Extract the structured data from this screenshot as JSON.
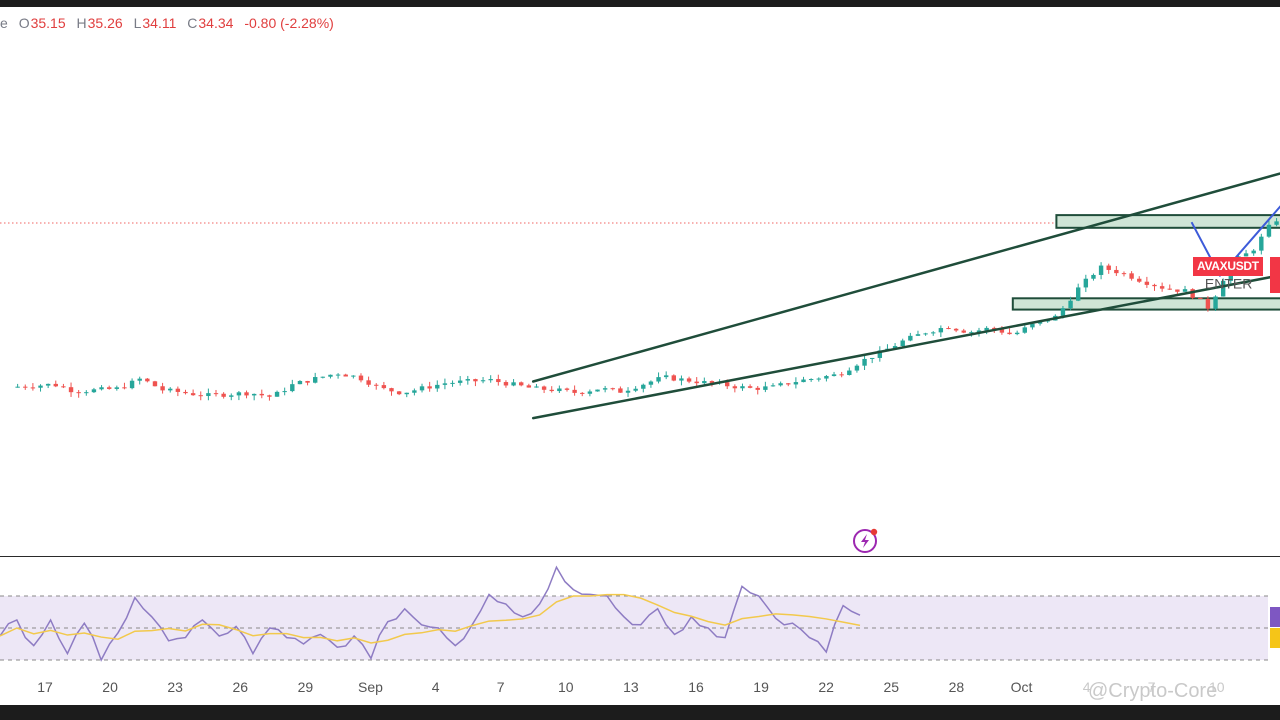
{
  "header": {
    "ohlc_prefix": "e",
    "open_label": "O",
    "open": "35.15",
    "high_label": "H",
    "high": "35.26",
    "low_label": "L",
    "low": "34.11",
    "close_label": "C",
    "close": "34.34",
    "change": "-0.80 (-2.28%)"
  },
  "price_tag": "AVAXUSDT",
  "annotation": "ENTER",
  "watermark": "@Crypto-Core",
  "colors": {
    "bull": "#26a69a",
    "bear": "#ef5350",
    "trendline": "#1f4d3a",
    "zone_fill": "#cfe5d6",
    "zone_stroke": "#1f4d3a",
    "arrow": "#3d5bd9",
    "rsi_line": "#8e7cc3",
    "rsi_ma": "#f2c94c",
    "rsi_band": "#ede7f6"
  },
  "chart_data": {
    "type": "candlestick",
    "symbol": "AVAXUSDT",
    "last_close": 34.34,
    "x_tick_labels": [
      "17",
      "20",
      "23",
      "26",
      "29",
      "Sep",
      "4",
      "7",
      "10",
      "13",
      "16",
      "19",
      "22",
      "25",
      "28",
      "Oct",
      "4",
      "7",
      "10"
    ],
    "price_path": [
      [
        0,
        22.7
      ],
      [
        2,
        22.9
      ],
      [
        3,
        22.4
      ],
      [
        5,
        22.6
      ],
      [
        6,
        23.3
      ],
      [
        7,
        22.5
      ],
      [
        9,
        22.1
      ],
      [
        11,
        22.3
      ],
      [
        12,
        22.0
      ],
      [
        13,
        22.9
      ],
      [
        15,
        23.7
      ],
      [
        16,
        23.4
      ],
      [
        17,
        22.6
      ],
      [
        18,
        22.3
      ],
      [
        20,
        23.0
      ],
      [
        22,
        23.2
      ],
      [
        24,
        22.6
      ],
      [
        25,
        22.5
      ],
      [
        26,
        22.3
      ],
      [
        27,
        22.6
      ],
      [
        28,
        22.4
      ],
      [
        29,
        22.9
      ],
      [
        30,
        23.4
      ],
      [
        31,
        23.2
      ],
      [
        33,
        22.8
      ],
      [
        34,
        22.6
      ],
      [
        35,
        22.7
      ],
      [
        36,
        23.1
      ],
      [
        38,
        23.6
      ],
      [
        39,
        24.5
      ],
      [
        40,
        25.2
      ],
      [
        41,
        26.0
      ],
      [
        42,
        26.6
      ],
      [
        43,
        27.0
      ],
      [
        44,
        26.6
      ],
      [
        45,
        26.9
      ],
      [
        46,
        26.4
      ],
      [
        47,
        27.2
      ],
      [
        48,
        27.7
      ],
      [
        49,
        29.7
      ],
      [
        50,
        31.2
      ],
      [
        51,
        30.8
      ],
      [
        52,
        30.2
      ],
      [
        53,
        29.7
      ],
      [
        54,
        29.5
      ],
      [
        55,
        28.3
      ],
      [
        56,
        31.5
      ],
      [
        57,
        32.4
      ],
      [
        58,
        34.6
      ],
      [
        59,
        34.3
      ]
    ],
    "upper_trendline": [
      [
        24,
        23.1
      ],
      [
        60,
        38.6
      ]
    ],
    "lower_trendline": [
      [
        24,
        20.5
      ],
      [
        58.5,
        30.7
      ]
    ],
    "resistance_zone": {
      "x_from": 48,
      "x_to": 66,
      "price_from": 34.0,
      "price_to": 34.9
    },
    "support_zone": {
      "x_from": 46,
      "x_to": 63,
      "price_from": 28.2,
      "price_to": 29.0
    },
    "projection_path": [
      [
        54.2,
        34.4
      ],
      [
        55.5,
        30.6
      ],
      [
        59.5,
        37.7
      ]
    ],
    "rsi": {
      "levels": [
        70,
        50,
        30
      ],
      "values": [
        45,
        55,
        39,
        55,
        34,
        53,
        30,
        47,
        69,
        57,
        42,
        44,
        55,
        45,
        51,
        34,
        50,
        44,
        40,
        46,
        38,
        45,
        31,
        54,
        62,
        52,
        50,
        39,
        52,
        71,
        65,
        57,
        65,
        88,
        74,
        71,
        70,
        57,
        52,
        62,
        46,
        57,
        50,
        44,
        76,
        70,
        56,
        53,
        44,
        35,
        64,
        58
      ]
    }
  }
}
